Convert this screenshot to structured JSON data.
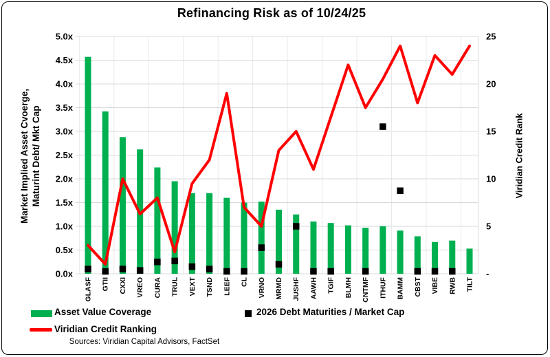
{
  "title": "Refinancing Risk as of 10/24/25",
  "source": "Sources: Viridian Capital Advisors, FactSet",
  "colors": {
    "bar": "#00B050",
    "square": "#000000",
    "line": "#FF0000",
    "gridline": "#D9D9D9",
    "gridline_vertical": "#E9E9E9"
  },
  "legend": {
    "items": [
      {
        "label": "Asset Value Coverage",
        "marker": "bar-swatch",
        "color": "#00B050"
      },
      {
        "label": "2026 Debt Maturities / Market Cap",
        "marker": "square-swatch",
        "color": "#000000"
      },
      {
        "label": "Viridian Credit Ranking",
        "marker": "line-swatch",
        "color": "#FF0000"
      }
    ]
  },
  "chart_data": {
    "type": "combo",
    "title": "Refinancing Risk as of 10/24/25",
    "categories": [
      "GLASF",
      "GTII",
      "CXXI",
      "VREO",
      "CURA",
      "TRUL",
      "VEXT",
      "TSND",
      "LEEF",
      "CL",
      "VRNO",
      "MRMD",
      "JUSHF",
      "AAWH",
      "TGIF",
      "BLMH",
      "CNTMF",
      "ITHUF",
      "BAMM",
      "CBST",
      "VIBE",
      "RWB",
      "TILT"
    ],
    "series": [
      {
        "name": "Asset Value Coverage",
        "type": "bar",
        "axis": "left",
        "color": "#00B050",
        "values": [
          4.57,
          3.42,
          2.88,
          2.62,
          2.24,
          1.95,
          1.7,
          1.7,
          1.6,
          1.5,
          1.52,
          1.35,
          1.25,
          1.1,
          1.07,
          1.02,
          0.97,
          1.0,
          0.91,
          0.79,
          0.67,
          0.7,
          0.53
        ]
      },
      {
        "name": "2026 Debt Maturities / Market Cap",
        "type": "scatter",
        "marker": "square",
        "axis": "left",
        "color": "#000000",
        "values": [
          0.1,
          0.05,
          0.1,
          0.07,
          0.25,
          0.27,
          0.15,
          0.1,
          0.05,
          0.05,
          0.55,
          0.2,
          1.0,
          0.05,
          0.05,
          null,
          0.05,
          3.1,
          1.75,
          0.05,
          0.05,
          0.05,
          null
        ]
      },
      {
        "name": "Viridian Credit Ranking",
        "type": "line",
        "axis": "right",
        "color": "#FF0000",
        "values": [
          3,
          1,
          10,
          6.3,
          8,
          2.3,
          9.5,
          12,
          19,
          7,
          5,
          13,
          15,
          11,
          16.5,
          22,
          17.5,
          20.5,
          24,
          18,
          23,
          21,
          24
        ]
      }
    ],
    "left_axis": {
      "title": "Market Implied Asset Cvoerge, Maturint Debt/ Mkt Cap",
      "title_lines": [
        "Market Implied Asset Cvoerge,",
        "Maturint Debt/ Mkt Cap"
      ],
      "ticks": [
        "5.0x",
        "4.5x",
        "4.0x",
        "3.5x",
        "3.0x",
        "2.5x",
        "2.0x",
        "1.5x",
        "1.0x",
        "0.5x",
        "0.0x"
      ],
      "min": 0,
      "max": 5
    },
    "right_axis": {
      "title": "Viridian Credit Rank",
      "ticks": [
        "25",
        "20",
        "15",
        "10",
        "5",
        "-"
      ],
      "min": 0,
      "max": 25
    },
    "grid": true,
    "legend_position": "bottom"
  }
}
